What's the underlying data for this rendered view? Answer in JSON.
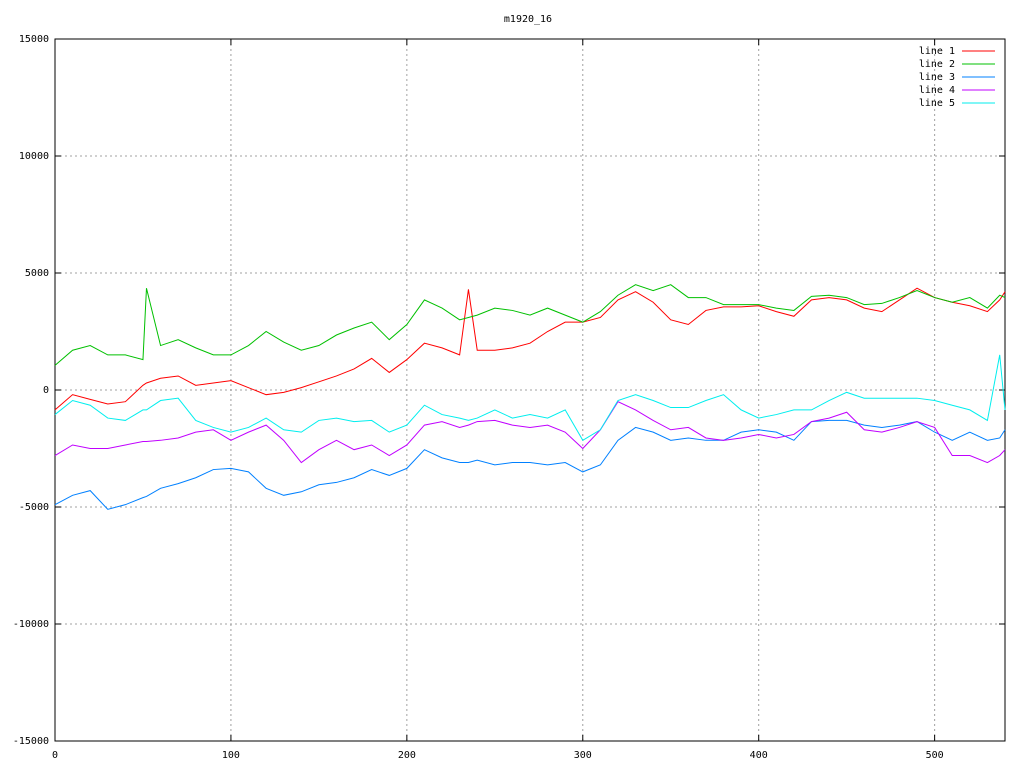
{
  "chart_data": {
    "type": "line",
    "title": "m1920_16",
    "x": [
      0,
      10,
      20,
      30,
      40,
      50,
      52,
      60,
      70,
      80,
      90,
      100,
      110,
      120,
      130,
      140,
      150,
      160,
      170,
      180,
      190,
      200,
      210,
      220,
      230,
      235,
      240,
      250,
      260,
      270,
      280,
      290,
      300,
      310,
      320,
      330,
      340,
      350,
      360,
      370,
      380,
      390,
      400,
      410,
      420,
      430,
      440,
      450,
      460,
      470,
      480,
      490,
      500,
      510,
      520,
      530,
      537,
      540
    ],
    "series": [
      {
        "name": "line 1",
        "color": "#ff0000",
        "values": [
          -850,
          -200,
          -400,
          -600,
          -500,
          200,
          300,
          500,
          600,
          200,
          300,
          400,
          100,
          -200,
          -100,
          100,
          350,
          600,
          900,
          1350,
          750,
          1300,
          2000,
          1800,
          1500,
          4300,
          1700,
          1700,
          1800,
          2000,
          2500,
          2900,
          2900,
          3100,
          3850,
          4200,
          3750,
          3000,
          2800,
          3400,
          3550,
          3550,
          3600,
          3350,
          3150,
          3850,
          3950,
          3850,
          3500,
          3350,
          3850,
          4350,
          3950,
          3750,
          3600,
          3350,
          3850,
          4200
        ]
      },
      {
        "name": "line 2",
        "color": "#00c000",
        "values": [
          1050,
          1700,
          1900,
          1500,
          1500,
          1300,
          4350,
          1900,
          2150,
          1800,
          1500,
          1500,
          1900,
          2500,
          2050,
          1700,
          1900,
          2350,
          2650,
          2900,
          2150,
          2800,
          3850,
          3500,
          3000,
          3100,
          3200,
          3500,
          3400,
          3200,
          3500,
          3200,
          2900,
          3350,
          4050,
          4500,
          4250,
          4500,
          3950,
          3950,
          3650,
          3650,
          3650,
          3500,
          3400,
          4000,
          4050,
          3950,
          3650,
          3700,
          3950,
          4250,
          3950,
          3750,
          3950,
          3500,
          4050,
          3950
        ]
      },
      {
        "name": "line 3",
        "color": "#0080ff",
        "values": [
          -4900,
          -4500,
          -4300,
          -5100,
          -4900,
          -4600,
          -4550,
          -4200,
          -4000,
          -3750,
          -3400,
          -3350,
          -3500,
          -4200,
          -4500,
          -4350,
          -4050,
          -3950,
          -3750,
          -3400,
          -3650,
          -3350,
          -2550,
          -2900,
          -3100,
          -3100,
          -3000,
          -3200,
          -3100,
          -3100,
          -3200,
          -3100,
          -3500,
          -3200,
          -2150,
          -1600,
          -1800,
          -2150,
          -2050,
          -2150,
          -2150,
          -1800,
          -1700,
          -1800,
          -2150,
          -1350,
          -1300,
          -1300,
          -1500,
          -1600,
          -1500,
          -1350,
          -1800,
          -2150,
          -1800,
          -2150,
          -2050,
          -1700
        ]
      },
      {
        "name": "line 4",
        "color": "#c000ff",
        "values": [
          -2800,
          -2350,
          -2500,
          -2500,
          -2350,
          -2200,
          -2200,
          -2150,
          -2050,
          -1800,
          -1700,
          -2150,
          -1800,
          -1500,
          -2150,
          -3100,
          -2550,
          -2150,
          -2550,
          -2350,
          -2800,
          -2350,
          -1500,
          -1350,
          -1600,
          -1500,
          -1350,
          -1300,
          -1500,
          -1600,
          -1500,
          -1800,
          -2500,
          -1700,
          -500,
          -850,
          -1300,
          -1700,
          -1600,
          -2050,
          -2150,
          -2050,
          -1900,
          -2050,
          -1900,
          -1350,
          -1200,
          -950,
          -1700,
          -1800,
          -1600,
          -1350,
          -1600,
          -2800,
          -2800,
          -3100,
          -2800,
          -2550
        ]
      },
      {
        "name": "line 5",
        "color": "#00eeee",
        "values": [
          -1050,
          -450,
          -650,
          -1200,
          -1300,
          -850,
          -850,
          -450,
          -350,
          -1300,
          -1600,
          -1800,
          -1600,
          -1200,
          -1700,
          -1800,
          -1300,
          -1200,
          -1350,
          -1300,
          -1800,
          -1500,
          -650,
          -1050,
          -1200,
          -1300,
          -1200,
          -850,
          -1200,
          -1050,
          -1200,
          -850,
          -2150,
          -1700,
          -450,
          -200,
          -450,
          -750,
          -750,
          -450,
          -200,
          -850,
          -1200,
          -1050,
          -850,
          -850,
          -450,
          -100,
          -350,
          -350,
          -350,
          -350,
          -450,
          -650,
          -850,
          -1300,
          1500,
          -850
        ]
      }
    ],
    "xlim": [
      0,
      540
    ],
    "xticks": [
      0,
      100,
      200,
      300,
      400,
      500
    ],
    "ylim": [
      -15000,
      15000
    ],
    "yticks": [
      -15000,
      -10000,
      -5000,
      0,
      5000,
      10000,
      15000
    ],
    "grid": true,
    "legend": "top right"
  }
}
